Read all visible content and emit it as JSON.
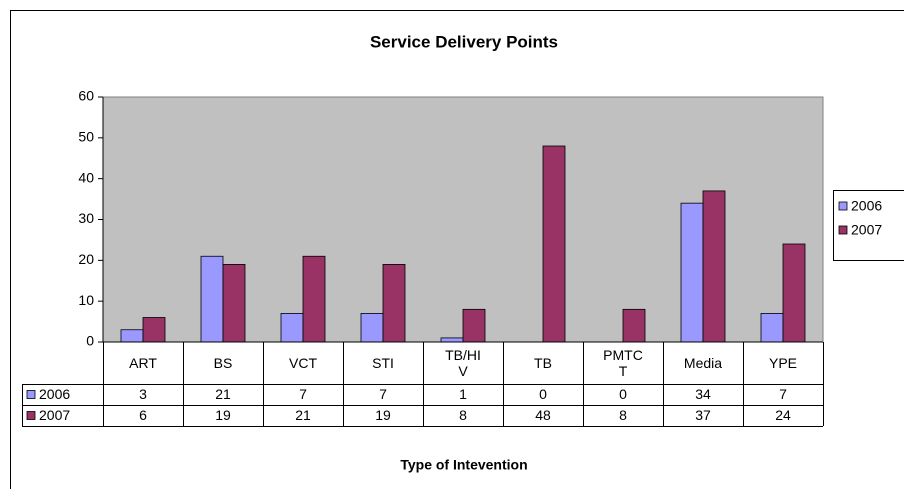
{
  "chart_data": {
    "type": "bar",
    "title": "Service Delivery Points",
    "x_label": "Type of Intevention",
    "categories": [
      "ART",
      "BS",
      "VCT",
      "STI",
      "TB/HIV",
      "TB",
      "PMTCT",
      "Media",
      "YPE"
    ],
    "series": [
      {
        "name": "2006",
        "color": "#9999ff",
        "values": [
          3,
          21,
          7,
          7,
          1,
          0,
          0,
          34,
          7
        ]
      },
      {
        "name": "2007",
        "color": "#993366",
        "values": [
          6,
          19,
          21,
          19,
          8,
          48,
          8,
          37,
          24
        ]
      }
    ],
    "ylim": [
      0,
      60
    ],
    "yticks": [
      0,
      10,
      20,
      30,
      40,
      50,
      60
    ],
    "grid": false,
    "legend": "right",
    "plot_background": "#c0c0c0"
  }
}
